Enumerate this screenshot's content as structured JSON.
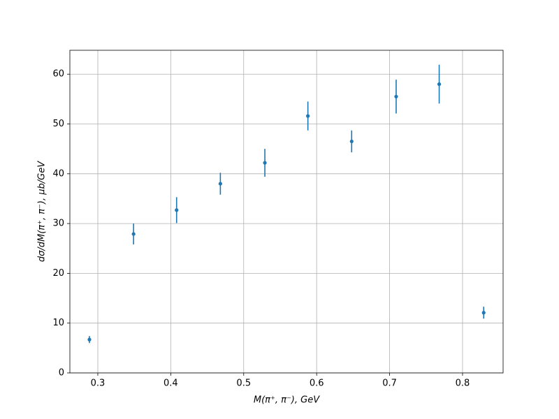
{
  "chart_data": {
    "type": "scatter",
    "xlabel": "M(π⁺, π⁻), GeV",
    "ylabel": "dσ/dM(π⁺, π⁻), μb/GeV",
    "x": [
      0.2885,
      0.349,
      0.408,
      0.468,
      0.529,
      0.588,
      0.648,
      0.709,
      0.768,
      0.829
    ],
    "values": [
      6.7,
      27.9,
      32.7,
      38.0,
      42.2,
      51.6,
      46.5,
      55.5,
      58.0,
      12.1
    ],
    "errors": [
      0.7,
      2.1,
      2.6,
      2.2,
      2.8,
      2.9,
      2.2,
      3.4,
      3.9,
      1.2
    ],
    "color": "#1f77b4",
    "xlim": [
      0.2617,
      0.8556
    ],
    "ylim": [
      0,
      64.8
    ],
    "xticks": [
      0.3,
      0.4,
      0.5,
      0.6,
      0.7,
      0.8
    ],
    "yticks": [
      0,
      10,
      20,
      30,
      40,
      50,
      60
    ],
    "grid": true
  }
}
